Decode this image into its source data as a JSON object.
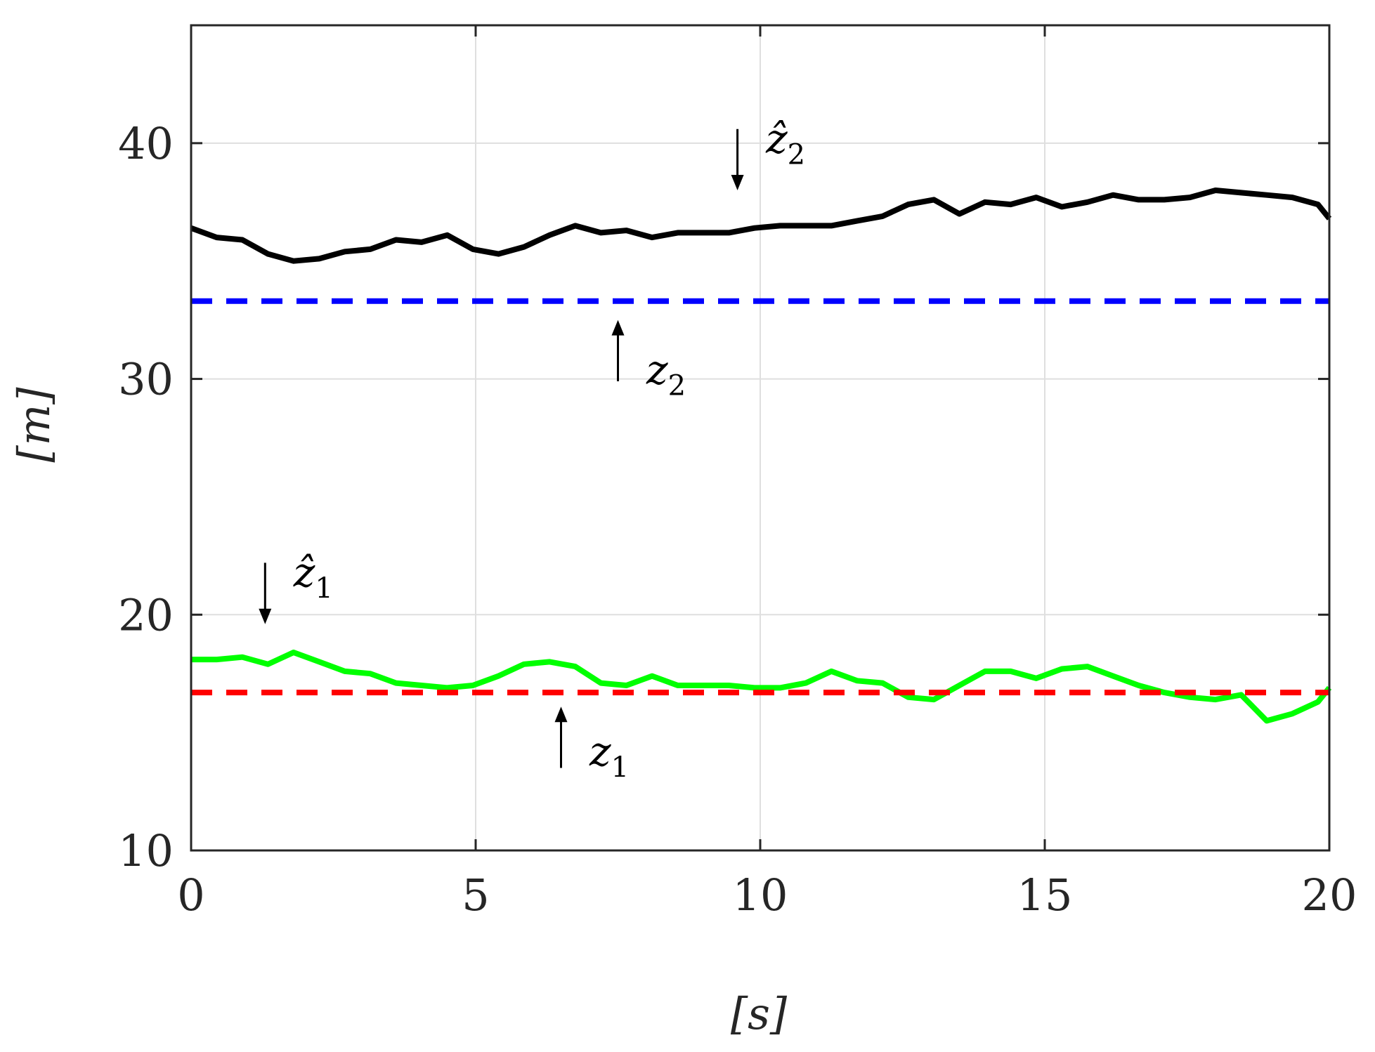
{
  "chart_data": {
    "type": "line",
    "title": "",
    "xlabel": "[s]",
    "ylabel": "[m]",
    "xlim": [
      0,
      20
    ],
    "ylim": [
      10,
      45
    ],
    "xticks": [
      0,
      5,
      10,
      15,
      20
    ],
    "yticks": [
      10,
      20,
      30,
      40
    ],
    "xtick_labels": [
      "0",
      "5",
      "10",
      "15",
      "20"
    ],
    "ytick_labels": [
      "10",
      "20",
      "30",
      "40"
    ],
    "grid": true,
    "legend": "none",
    "series": [
      {
        "color": "#000000",
        "style": "solid",
        "x": [
          0,
          0.45,
          0.9,
          1.35,
          1.8,
          2.25,
          2.7,
          3.15,
          3.6,
          4.05,
          4.5,
          4.95,
          5.4,
          5.85,
          6.3,
          6.75,
          7.2,
          7.65,
          8.1,
          8.55,
          9.0,
          9.45,
          9.9,
          10.35,
          10.8,
          11.25,
          11.7,
          12.15,
          12.6,
          13.05,
          13.5,
          13.95,
          14.4,
          14.85,
          15.3,
          15.75,
          16.2,
          16.65,
          17.1,
          17.55,
          18.0,
          18.45,
          18.9,
          19.35,
          19.8,
          20.0
        ],
        "y": [
          36.4,
          36.0,
          35.9,
          35.3,
          35.0,
          35.1,
          35.4,
          35.5,
          35.9,
          35.8,
          36.1,
          35.5,
          35.3,
          35.6,
          36.1,
          36.5,
          36.2,
          36.3,
          36.0,
          36.2,
          36.2,
          36.2,
          36.4,
          36.5,
          36.5,
          36.5,
          36.7,
          36.9,
          37.4,
          37.6,
          37.0,
          37.5,
          37.4,
          37.7,
          37.3,
          37.5,
          37.8,
          37.6,
          37.6,
          37.7,
          38.0,
          37.9,
          37.8,
          37.7,
          37.4,
          36.8
        ]
      },
      {
        "color": "#0000ff",
        "style": "dashed",
        "x": [
          0,
          20
        ],
        "y": [
          33.3,
          33.3
        ]
      },
      {
        "color": "#00ff00",
        "style": "solid",
        "x": [
          0,
          0.45,
          0.9,
          1.35,
          1.8,
          2.25,
          2.7,
          3.15,
          3.6,
          4.05,
          4.5,
          4.95,
          5.4,
          5.85,
          6.3,
          6.75,
          7.2,
          7.65,
          8.1,
          8.55,
          9.0,
          9.45,
          9.9,
          10.35,
          10.8,
          11.25,
          11.7,
          12.15,
          12.6,
          13.05,
          13.5,
          13.95,
          14.4,
          14.85,
          15.3,
          15.75,
          16.2,
          16.65,
          17.1,
          17.55,
          18.0,
          18.45,
          18.9,
          19.35,
          19.8,
          20.0
        ],
        "y": [
          18.1,
          18.1,
          18.2,
          17.9,
          18.4,
          18.0,
          17.6,
          17.5,
          17.1,
          17.0,
          16.9,
          17.0,
          17.4,
          17.9,
          18.0,
          17.8,
          17.1,
          17.0,
          17.4,
          17.0,
          17.0,
          17.0,
          16.9,
          16.9,
          17.1,
          17.6,
          17.2,
          17.1,
          16.5,
          16.4,
          17.0,
          17.6,
          17.6,
          17.3,
          17.7,
          17.8,
          17.4,
          17.0,
          16.7,
          16.5,
          16.4,
          16.6,
          15.5,
          15.8,
          16.3,
          16.9
        ]
      },
      {
        "color": "#ff0000",
        "style": "dashed",
        "x": [
          0,
          20
        ],
        "y": [
          16.7,
          16.7
        ]
      }
    ],
    "annotations": [
      {
        "id": "z2hat",
        "base": "ẑ",
        "sub": "2",
        "arrow": "down",
        "arrow_x": 9.6,
        "arrow_from": 40.6,
        "arrow_to": 38.0,
        "text_x": 10.1,
        "text_y": 39.6
      },
      {
        "id": "z2",
        "base": "z",
        "sub": "2",
        "arrow": "up",
        "arrow_x": 7.5,
        "arrow_from": 29.9,
        "arrow_to": 32.5,
        "text_x": 8.0,
        "text_y": 29.8
      },
      {
        "id": "z1hat",
        "base": "ẑ",
        "sub": "1",
        "arrow": "down",
        "arrow_x": 1.3,
        "arrow_from": 22.2,
        "arrow_to": 19.6,
        "text_x": 1.8,
        "text_y": 21.2
      },
      {
        "id": "z1",
        "base": "z",
        "sub": "1",
        "arrow": "up",
        "arrow_x": 6.5,
        "arrow_from": 13.5,
        "arrow_to": 16.1,
        "text_x": 7.0,
        "text_y": 13.6
      }
    ]
  }
}
